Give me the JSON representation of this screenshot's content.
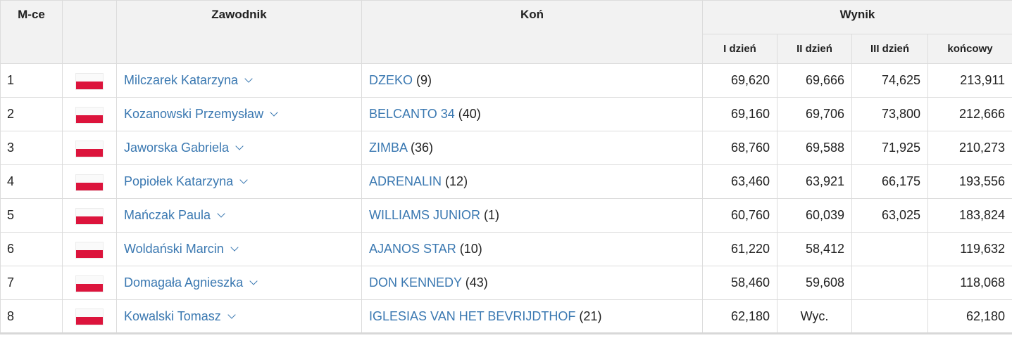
{
  "headers": {
    "place": "M-ce",
    "rider": "Zawodnik",
    "horse": "Koń",
    "result": "Wynik",
    "day1": "I dzień",
    "day2": "II dzień",
    "day3": "III dzień",
    "final": "końcowy"
  },
  "rows": [
    {
      "place": "1",
      "country": "poland-flag",
      "rider": "Milczarek Katarzyna",
      "horse": "DZEKO",
      "horse_no": "(9)",
      "d1": "69,620",
      "d2": "69,666",
      "d3": "74,625",
      "final": "213,911"
    },
    {
      "place": "2",
      "country": "poland-flag",
      "rider": "Kozanowski Przemysław",
      "horse": "BELCANTO 34",
      "horse_no": "(40)",
      "d1": "69,160",
      "d2": "69,706",
      "d3": "73,800",
      "final": "212,666"
    },
    {
      "place": "3",
      "country": "poland-flag",
      "rider": "Jaworska Gabriela",
      "horse": "ZIMBA",
      "horse_no": "(36)",
      "d1": "68,760",
      "d2": "69,588",
      "d3": "71,925",
      "final": "210,273"
    },
    {
      "place": "4",
      "country": "poland-flag",
      "rider": "Popiołek Katarzyna",
      "horse": "ADRENALIN",
      "horse_no": "(12)",
      "d1": "63,460",
      "d2": "63,921",
      "d3": "66,175",
      "final": "193,556"
    },
    {
      "place": "5",
      "country": "poland-flag",
      "rider": "Mańczak Paula",
      "horse": "WILLIAMS JUNIOR",
      "horse_no": "(1)",
      "d1": "60,760",
      "d2": "60,039",
      "d3": "63,025",
      "final": "183,824"
    },
    {
      "place": "6",
      "country": "poland-flag",
      "rider": "Woldański Marcin",
      "horse": "AJANOS STAR",
      "horse_no": "(10)",
      "d1": "61,220",
      "d2": "58,412",
      "d3": "",
      "final": "119,632"
    },
    {
      "place": "7",
      "country": "poland-flag",
      "rider": "Domagała Agnieszka",
      "horse": "DON KENNEDY",
      "horse_no": "(43)",
      "d1": "58,460",
      "d2": "59,608",
      "d3": "",
      "final": "118,068"
    },
    {
      "place": "8",
      "country": "poland-flag",
      "rider": "Kowalski Tomasz",
      "horse": "IGLESIAS VAN HET BEVRIJDTHOF",
      "horse_no": "(21)",
      "d1": "62,180",
      "d2": "Wyc.",
      "d3": "",
      "final": "62,180"
    }
  ],
  "colors": {
    "link": "#3a78b1",
    "header_bg": "#f2f2f2",
    "border": "#dcdcdc",
    "flag_red": "#dc143c"
  }
}
